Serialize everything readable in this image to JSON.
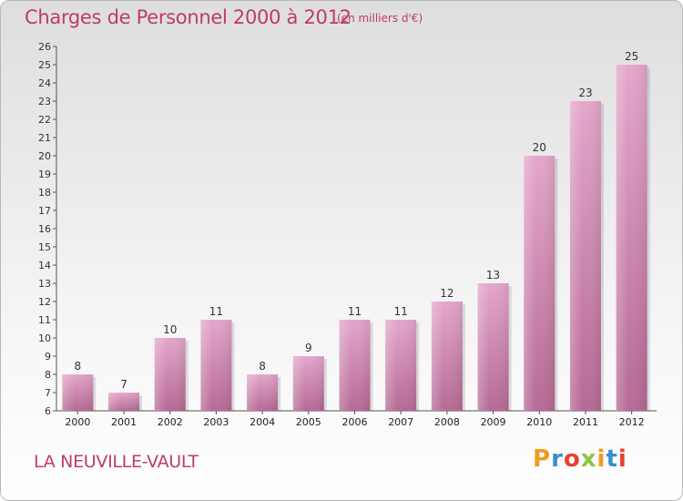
{
  "header": {
    "title": "Charges de Personnel 2000 à 2012",
    "subtitle": "(en milliers d'€)"
  },
  "footer": {
    "commune": "LA NEUVILLE-VAULT",
    "logo": "Proxiti",
    "logo_colors": [
      "#f39a1e",
      "#3a8fd1",
      "#e8412f",
      "#8cc63f",
      "#f39a1e",
      "#3a8fd1",
      "#e8412f"
    ]
  },
  "chart_data": {
    "type": "bar",
    "title": "Charges de Personnel 2000 à 2012",
    "subtitle": "(en milliers d'€)",
    "categories": [
      "2000",
      "2001",
      "2002",
      "2003",
      "2004",
      "2005",
      "2006",
      "2007",
      "2008",
      "2009",
      "2010",
      "2011",
      "2012"
    ],
    "values": [
      8,
      7,
      10,
      11,
      8,
      9,
      11,
      11,
      12,
      13,
      20,
      23,
      25
    ],
    "value_labels": [
      "8",
      "7",
      "10",
      "11",
      "8",
      "9",
      "11",
      "11",
      "12",
      "13",
      "20",
      "23",
      "25"
    ],
    "ylim": [
      6,
      26
    ],
    "yticks": [
      "6",
      "7",
      "8",
      "9",
      "10",
      "11",
      "12",
      "13",
      "14",
      "15",
      "16",
      "17",
      "18",
      "19",
      "20",
      "21",
      "22",
      "23",
      "24",
      "25",
      "26"
    ],
    "grid": false,
    "bar_color_top": "#e4a6cb",
    "bar_color_bottom": "#b56a95"
  }
}
